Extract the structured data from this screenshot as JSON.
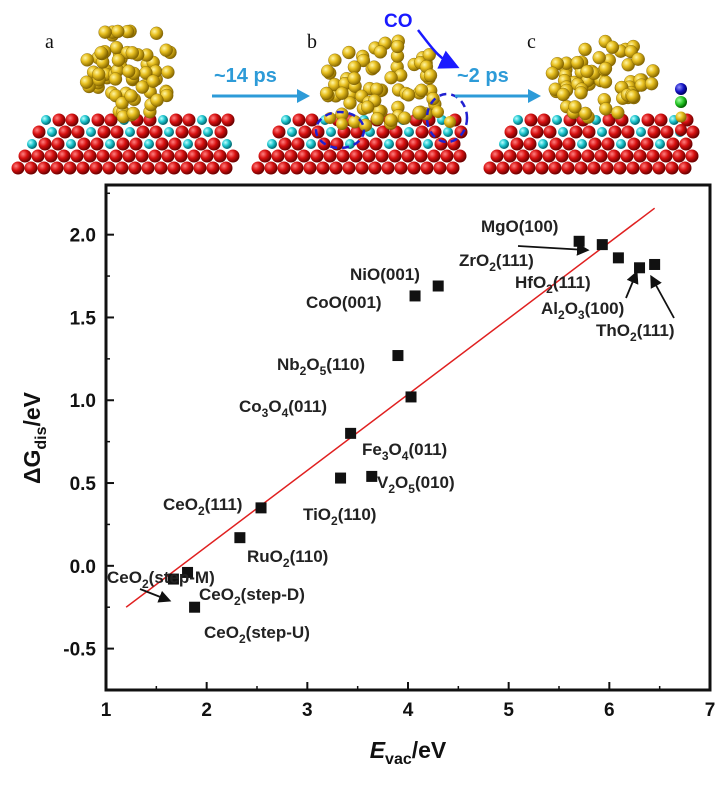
{
  "panels": {
    "letters": [
      "a",
      "b",
      "c"
    ],
    "arrow_labels": [
      "~14 ps",
      "~2 ps"
    ],
    "adsorbate_label": "CO"
  },
  "chart_data": {
    "type": "scatter",
    "xlabel": "E",
    "xlabel_sub": "vac",
    "xlabel_unit": "/eV",
    "ylabel": "ΔG",
    "ylabel_sub": "dis",
    "ylabel_unit": "/eV",
    "xlim": [
      1,
      7
    ],
    "ylim": [
      -0.75,
      2.3
    ],
    "xticks": [
      "1",
      "2",
      "3",
      "4",
      "5",
      "6",
      "7"
    ],
    "yticks": [
      "-0.5",
      "0.0",
      "0.5",
      "1.0",
      "1.5",
      "2.0"
    ],
    "ytick_values": [
      -0.5,
      0.0,
      0.5,
      1.0,
      1.5,
      2.0
    ],
    "points": [
      {
        "label": "MgO(100)",
        "x": 5.7,
        "y": 1.96
      },
      {
        "label": "ZrO2(111)",
        "x": 5.93,
        "y": 1.94
      },
      {
        "label": "HfO2(111)",
        "x": 6.09,
        "y": 1.86
      },
      {
        "label": "Al2O3(100)",
        "x": 6.3,
        "y": 1.8
      },
      {
        "label": "ThO2(111)",
        "x": 6.45,
        "y": 1.82
      },
      {
        "label": "NiO(001)",
        "x": 4.3,
        "y": 1.69
      },
      {
        "label": "CoO(001)",
        "x": 4.07,
        "y": 1.63
      },
      {
        "label": "Nb2O5(110)",
        "x": 3.9,
        "y": 1.27
      },
      {
        "label": "Co3O4(011)",
        "x": 4.03,
        "y": 1.02
      },
      {
        "label": "Fe3O4(011)",
        "x": 3.43,
        "y": 0.8
      },
      {
        "label": "V2O5(010)",
        "x": 3.64,
        "y": 0.54
      },
      {
        "label": "TiO2(110)",
        "x": 3.33,
        "y": 0.53
      },
      {
        "label": "CeO2(111)",
        "x": 2.54,
        "y": 0.35
      },
      {
        "label": "RuO2(110)",
        "x": 2.33,
        "y": 0.17
      },
      {
        "label": "CeO2(step-M)",
        "x": 1.67,
        "y": -0.08
      },
      {
        "label": "CeO2(step-D)",
        "x": 1.81,
        "y": -0.04
      },
      {
        "label": "CeO2(step-U)",
        "x": 1.88,
        "y": -0.25
      }
    ],
    "fit_line": {
      "x": [
        1.2,
        6.45
      ],
      "y": [
        -0.25,
        2.16
      ],
      "color": "#e02020"
    },
    "marker_color": "#111111",
    "grid": false,
    "legend": "none"
  }
}
